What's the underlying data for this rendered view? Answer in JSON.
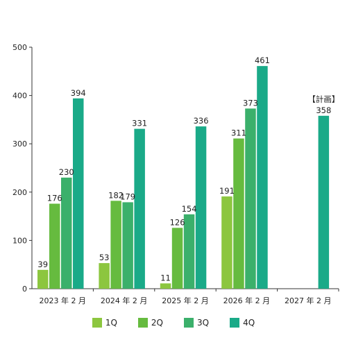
{
  "chart_data": {
    "type": "bar",
    "title": "",
    "xlabel": "",
    "ylabel": "",
    "ylim": [
      0,
      500
    ],
    "yticks": [
      0,
      100,
      200,
      300,
      400,
      500
    ],
    "grid": false,
    "legend_position": "bottom",
    "categories": [
      "2023 年 2 月",
      "2024 年 2 月",
      "2025 年 2 月",
      "2026 年 2 月",
      "2027 年 2 月"
    ],
    "series": [
      {
        "name": "1Q",
        "color": "#8cc63f",
        "values": [
          39,
          53,
          11,
          191,
          null
        ]
      },
      {
        "name": "2Q",
        "color": "#66bb3f",
        "values": [
          176,
          182,
          126,
          311,
          null
        ]
      },
      {
        "name": "3Q",
        "color": "#3bb06b",
        "values": [
          230,
          179,
          154,
          373,
          null
        ]
      },
      {
        "name": "4Q",
        "color": "#1aaa88",
        "values": [
          394,
          331,
          336,
          461,
          358
        ]
      }
    ],
    "annotations": [
      {
        "category_index": 4,
        "series_index": 3,
        "text": "【計画】"
      }
    ]
  }
}
